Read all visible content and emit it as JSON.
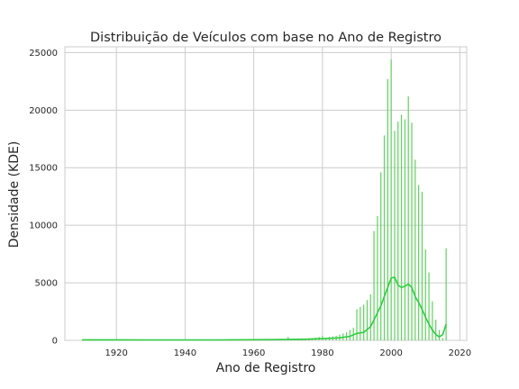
{
  "chart_data": {
    "type": "bar",
    "title": "Distribuição de Veículos com base no Ano de Registro",
    "xlabel": "Ano de Registro",
    "ylabel": "Densidade (KDE)",
    "xlim": [
      1905,
      2022
    ],
    "ylim": [
      0,
      25500
    ],
    "xticks": [
      1920,
      1940,
      1960,
      1980,
      2000,
      2020
    ],
    "yticks": [
      0,
      5000,
      10000,
      15000,
      20000,
      25000
    ],
    "grid": true,
    "bar_color": "#5fd35f",
    "line_color": "#2ecc40",
    "series": [
      {
        "type": "bar",
        "x": [
          1910,
          1925,
          1937,
          1950,
          1955,
          1960,
          1965,
          1968,
          1970,
          1971,
          1972,
          1973,
          1974,
          1975,
          1976,
          1977,
          1978,
          1979,
          1980,
          1981,
          1982,
          1983,
          1984,
          1985,
          1986,
          1987,
          1988,
          1989,
          1990,
          1991,
          1992,
          1993,
          1994,
          1995,
          1996,
          1997,
          1998,
          1999,
          2000,
          2001,
          2002,
          2003,
          2004,
          2005,
          2006,
          2007,
          2008,
          2009,
          2010,
          2011,
          2012,
          2013,
          2014,
          2015,
          2016
        ],
        "y": [
          40,
          20,
          20,
          20,
          30,
          80,
          40,
          50,
          300,
          100,
          80,
          100,
          100,
          150,
          120,
          200,
          250,
          300,
          400,
          200,
          300,
          350,
          400,
          500,
          600,
          700,
          900,
          1100,
          2700,
          2900,
          3100,
          3500,
          4000,
          9500,
          10800,
          14600,
          17800,
          22700,
          24400,
          18200,
          19000,
          19600,
          19200,
          21200,
          18900,
          15700,
          13500,
          12900,
          7900,
          5900,
          3400,
          1800,
          900,
          200,
          8000
        ]
      },
      {
        "type": "line",
        "name": "KDE",
        "x": [
          1910,
          1930,
          1950,
          1965,
          1975,
          1980,
          1985,
          1988,
          1990,
          1992,
          1994,
          1996,
          1997,
          1998,
          1999,
          2000,
          2001,
          2002,
          2003,
          2004,
          2005,
          2006,
          2007,
          2008,
          2009,
          2010,
          2011,
          2012,
          2013,
          2014,
          2015,
          2016
        ],
        "y": [
          50,
          40,
          40,
          60,
          100,
          150,
          220,
          350,
          600,
          700,
          1200,
          2400,
          3000,
          3800,
          4600,
          5400,
          5500,
          4800,
          4600,
          4700,
          4900,
          4600,
          3800,
          3300,
          2700,
          2000,
          1400,
          900,
          500,
          300,
          500,
          1400
        ]
      }
    ]
  }
}
